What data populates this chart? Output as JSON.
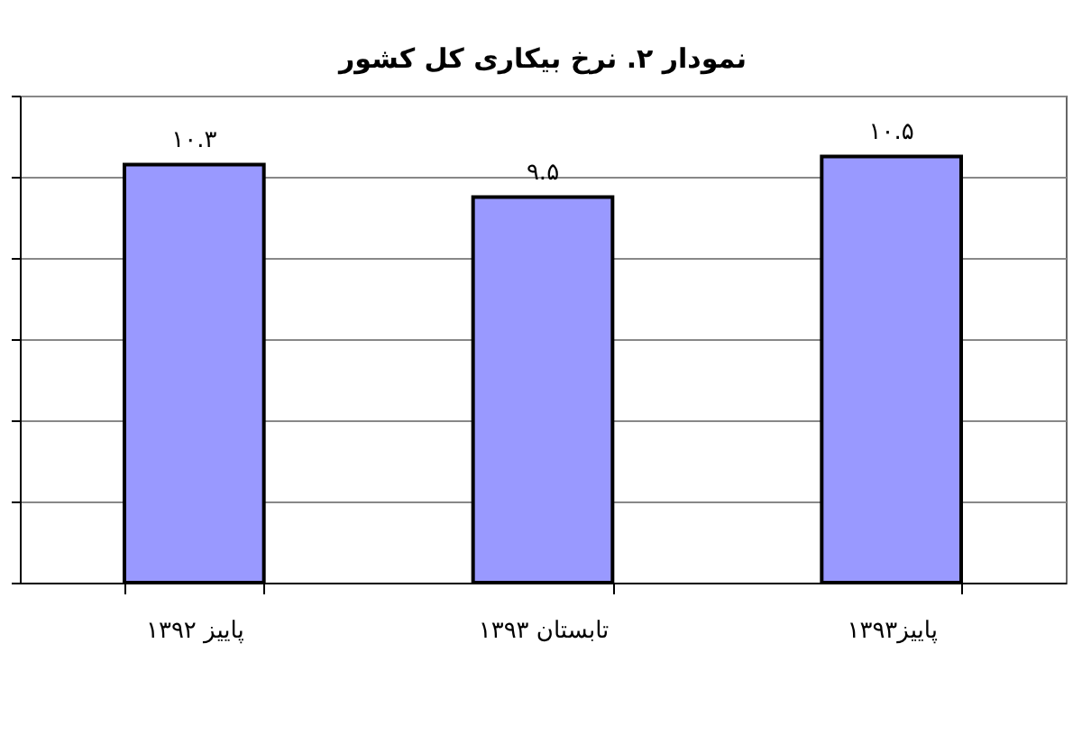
{
  "chart_data": {
    "type": "bar",
    "title": "نمودار ۲. نرخ بیکاری کل کشور",
    "categories": [
      "پاییز ۱۳۹۲",
      "تابستان ۱۳۹۳",
      "پاییز۱۳۹۳"
    ],
    "values": [
      10.3,
      9.5,
      10.5
    ],
    "value_labels": [
      "۱۰.۳",
      "۹.۵",
      "۱۰.۵"
    ],
    "color": "#9999ff",
    "ylim": [
      0,
      12
    ],
    "yticks": [
      {
        "value": 0,
        "label": null
      },
      {
        "value": 2,
        "label": null
      },
      {
        "value": 4,
        "label": null
      },
      {
        "value": 6,
        "label": null
      },
      {
        "value": 8,
        "label": null
      },
      {
        "value": 10,
        "label": null
      },
      {
        "value": 12,
        "label": null
      }
    ],
    "tick_labels": "x",
    "grid": "y"
  }
}
